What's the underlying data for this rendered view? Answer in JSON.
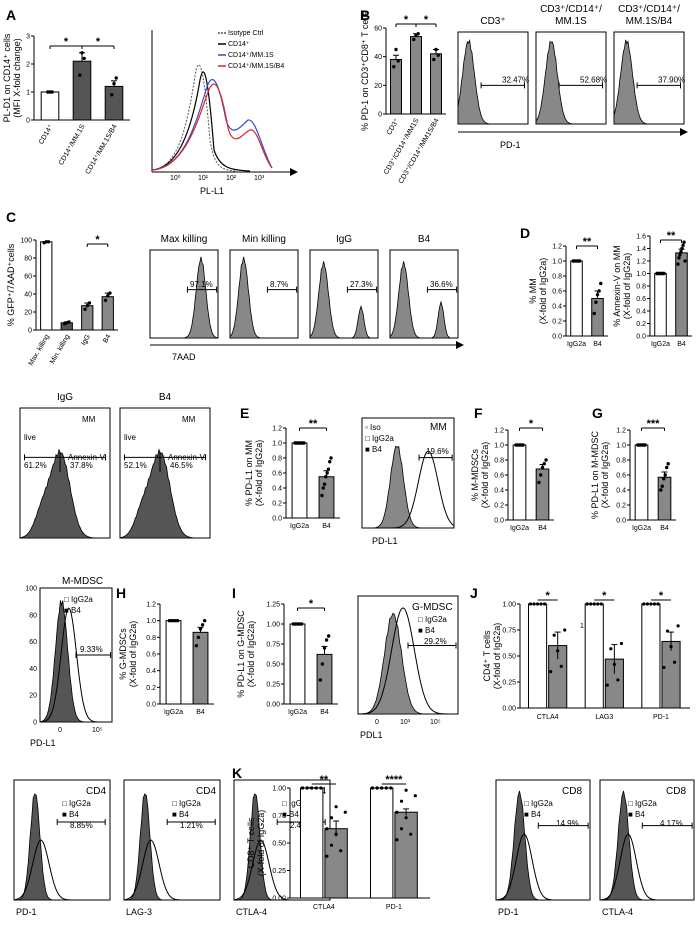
{
  "colors": {
    "dark_fill": "#555555",
    "mid_fill": "#888888",
    "light_fill": "#ffffff",
    "red": "#d9262b",
    "blue": "#2f50c9"
  },
  "panels": {
    "A": {
      "label": "A",
      "chart": {
        "type": "bar",
        "ylabel": "PL-D1 on CD14+ cells (MFI X-fold change)",
        "ylabel_line1": "PL-D1 on CD14⁺ cells",
        "ylabel_line2": "(MFI X-fold change)",
        "categories": [
          "CD14⁺",
          "CD14⁺/MM.1S",
          "CD14⁺/MM.1S/B4"
        ],
        "values": [
          1.0,
          2.1,
          1.2
        ],
        "errors": [
          0.0,
          0.3,
          0.2
        ],
        "points": [
          [
            1,
            1,
            1
          ],
          [
            1.6,
            2.4,
            2.2
          ],
          [
            0.9,
            1.3,
            1.5
          ]
        ],
        "ylim": [
          0,
          3
        ],
        "yticks": [
          0,
          1,
          2,
          3
        ],
        "fills": [
          "#ffffff",
          "#555555",
          "#555555"
        ],
        "sig": [
          "*",
          "*"
        ]
      },
      "histogram": {
        "xlabel": "PL-L1",
        "legend": [
          "Isotype Ctrl",
          "CD14⁺",
          "CD14⁺/MM.1S",
          "CD14⁺/MM.1S/B4"
        ],
        "xticks": [
          "10⁰",
          "10¹",
          "10²",
          "10³"
        ]
      }
    },
    "B": {
      "label": "B",
      "chart": {
        "type": "bar",
        "ylabel": "% PD-1 on CD3+CD8+ T cells",
        "ylabel_line1": "% PD-1 on CD3⁺CD8⁺ T cells",
        "categories": [
          "CD3⁺",
          "CD3⁺/CD14⁺/MM1S",
          "CD3⁺/CD14⁺/MM1S/B4"
        ],
        "values": [
          38,
          54,
          42
        ],
        "errors": [
          3,
          2,
          3
        ],
        "points": [
          [
            33,
            45,
            37
          ],
          [
            52,
            55,
            56
          ],
          [
            38,
            45,
            41
          ]
        ],
        "ylim": [
          0,
          60
        ],
        "yticks": [
          0,
          20,
          40,
          60
        ],
        "fills": [
          "#888888",
          "#888888",
          "#888888"
        ],
        "sig": [
          "*",
          "*"
        ]
      },
      "histograms": [
        {
          "title": "CD3⁺",
          "pct": "32.47%"
        },
        {
          "title": "CD3⁺/CD14⁺/ MM.1S",
          "title_l1": "CD3⁺/CD14⁺/",
          "title_l2": "MM.1S",
          "pct": "52.68%"
        },
        {
          "title": "CD3⁺/CD14⁺/ MM.1S/B4",
          "title_l1": "CD3⁺/CD14⁺/",
          "title_l2": "MM.1S/B4",
          "pct": "37.90%"
        }
      ],
      "xlabel": "PD-1"
    },
    "C": {
      "label": "C",
      "chart": {
        "type": "bar",
        "ylabel": "% GFP+/7AAD+ cells",
        "ylabel_line1": "% GFP⁺/7AAD⁺cells",
        "categories": [
          "Max. killing",
          "Min. killing",
          "IgG",
          "B4"
        ],
        "values": [
          98,
          8,
          27,
          37
        ],
        "errors": [
          0,
          1,
          3,
          4
        ],
        "points": [
          [
            97,
            98,
            98
          ],
          [
            7,
            8,
            9
          ],
          [
            23,
            27,
            30
          ],
          [
            33,
            38,
            41
          ]
        ],
        "ylim": [
          0,
          100
        ],
        "yticks": [
          0,
          20,
          40,
          60,
          80,
          100
        ],
        "fills": [
          "#ffffff",
          "#555555",
          "#888888",
          "#888888"
        ],
        "sig": [
          "*"
        ]
      },
      "histograms": [
        {
          "title": "Max killing",
          "pct": "97.1%"
        },
        {
          "title": "Min killing",
          "pct": "8.7%"
        },
        {
          "title": "IgG",
          "pct": "27.3%"
        },
        {
          "title": "B4",
          "pct": "36.6%"
        }
      ],
      "xlabel": "7AAD"
    },
    "D": {
      "label": "D",
      "charts": [
        {
          "type": "bar",
          "ylabel_line1": "% MM",
          "ylabel_line2": "(X-fold of IgG2a)",
          "categories": [
            "IgG2a",
            "B4"
          ],
          "values": [
            1.0,
            0.5
          ],
          "errors": [
            0,
            0.1
          ],
          "points": [
            [
              1,
              1,
              1,
              1,
              1
            ],
            [
              0.3,
              0.45,
              0.55,
              0.6,
              0.7
            ]
          ],
          "ylim": [
            0,
            1.2
          ],
          "yticks": [
            "0.0",
            "0.2",
            "0.4",
            "0.6",
            "0.8",
            "1.0",
            "1.2"
          ],
          "sig": "**"
        },
        {
          "type": "bar",
          "ylabel_line1": "% Annexin-V on MM",
          "ylabel_line2": "(X-fold of IgG2a)",
          "categories": [
            "IgG2a",
            "B4"
          ],
          "values": [
            1.0,
            1.33
          ],
          "errors": [
            0,
            0.06
          ],
          "points": [
            [
              1,
              1,
              1,
              1,
              1,
              1,
              1,
              1
            ],
            [
              1.15,
              1.25,
              1.3,
              1.35,
              1.4,
              1.45,
              1.5,
              1.2
            ]
          ],
          "ylim": [
            0,
            1.6
          ],
          "yticks": [
            "0.0",
            "0.2",
            "0.4",
            "0.6",
            "0.8",
            "1.0",
            "1.2",
            "1.4",
            "1.6"
          ],
          "sig": "**"
        }
      ]
    },
    "CC": {
      "dotplots": [
        {
          "title": "IgG",
          "tag": "MM",
          "live": "live",
          "live_pct": "61.2%",
          "annex": "Annexin-V",
          "annex_pct": "37.8%"
        },
        {
          "title": "B4",
          "tag": "MM",
          "live": "live",
          "live_pct": "52.1%",
          "annex": "Annexin-V",
          "annex_pct": "46.5%"
        }
      ]
    },
    "E": {
      "label": "E",
      "chart": {
        "type": "bar",
        "ylabel_line1": "% PD-L1 on MM",
        "ylabel_line2": "(X-fold of IgG2a)",
        "categories": [
          "IgG2a",
          "B4"
        ],
        "values": [
          1.0,
          0.55
        ],
        "errors": [
          0,
          0.08
        ],
        "points": [
          [
            1,
            1,
            1,
            1,
            1,
            1,
            1,
            1
          ],
          [
            0.3,
            0.4,
            0.45,
            0.55,
            0.6,
            0.65,
            0.75,
            0.8
          ]
        ],
        "ylim": [
          0,
          1.2
        ],
        "yticks": [
          "0.0",
          "0.2",
          "0.4",
          "0.6",
          "0.8",
          "1.0",
          "1.2"
        ],
        "sig": "**"
      },
      "histogram": {
        "tag": "MM",
        "legend": [
          "Iso",
          "IgG2a",
          "B4"
        ],
        "pct": "19.6%",
        "xlabel": "PD-L1"
      }
    },
    "F": {
      "label": "F",
      "chart": {
        "type": "bar",
        "ylabel_line1": "% M-MDSCs",
        "ylabel_line2": "(X-fold of IgG2a)",
        "categories": [
          "IgG2a",
          "B4"
        ],
        "values": [
          1.0,
          0.68
        ],
        "errors": [
          0,
          0.06
        ],
        "points": [
          [
            1,
            1,
            1,
            1,
            1
          ],
          [
            0.5,
            0.6,
            0.7,
            0.75,
            0.8
          ]
        ],
        "ylim": [
          0,
          1.2
        ],
        "yticks": [
          "0.0",
          "0.2",
          "0.4",
          "0.6",
          "0.8",
          "1.0",
          "1.2"
        ],
        "sig": "*"
      }
    },
    "G": {
      "label": "G",
      "chart": {
        "type": "bar",
        "ylabel_line1": "% PD-L1 on M-MDSC",
        "ylabel_line2": "(X-fold of IgG2a)",
        "categories": [
          "IgG2a",
          "B4"
        ],
        "values": [
          1.0,
          0.57
        ],
        "errors": [
          0,
          0.07
        ],
        "points": [
          [
            1,
            1,
            1,
            1,
            1,
            1
          ],
          [
            0.4,
            0.45,
            0.55,
            0.6,
            0.7,
            0.75
          ]
        ],
        "ylim": [
          0,
          1.2
        ],
        "yticks": [
          "0.0",
          "0.2",
          "0.4",
          "0.6",
          "0.8",
          "1.0",
          "1.2"
        ],
        "sig": "***"
      }
    },
    "MMDSC": {
      "histogram": {
        "tag": "M-MDSC",
        "legend": [
          "IgG2a",
          "B4"
        ],
        "pct": "9.33%",
        "xlabel": "PD-L1",
        "yticks": [
          "0",
          "20",
          "40",
          "60",
          "80",
          "100"
        ],
        "xticks": [
          "0",
          "10⁵"
        ]
      }
    },
    "H": {
      "label": "H",
      "chart": {
        "type": "bar",
        "ylabel_line1": "% G-MDSCs",
        "ylabel_line2": "(X-fold of IgG2a)",
        "categories": [
          "IgG2a",
          "B4"
        ],
        "values": [
          1.0,
          0.86
        ],
        "errors": [
          0,
          0.06
        ],
        "points": [
          [
            1,
            1,
            1,
            1,
            1
          ],
          [
            0.7,
            0.8,
            0.9,
            0.95,
            1.0
          ]
        ],
        "ylim": [
          0,
          1.2
        ],
        "yticks": [
          "0.0",
          "0.2",
          "0.4",
          "0.6",
          "0.8",
          "1.0",
          "1.2"
        ]
      }
    },
    "I": {
      "label": "I",
      "chart": {
        "type": "bar",
        "ylabel_line1": "% PD-L1 on G-MDSC",
        "ylabel_line2": "(X-fold of IgG2a)",
        "categories": [
          "IgG2a",
          "B4"
        ],
        "values": [
          1.0,
          0.62
        ],
        "errors": [
          0,
          0.1
        ],
        "points": [
          [
            1,
            1,
            1,
            1,
            1
          ],
          [
            0.3,
            0.5,
            0.7,
            0.8,
            0.85
          ]
        ],
        "ylim": [
          0,
          1.25
        ],
        "yticks": [
          "0.00",
          "0.25",
          "0.50",
          "0.75",
          "1.00",
          "1.25"
        ],
        "sig": "*"
      },
      "histogram": {
        "tag": "G-MDSC",
        "legend": [
          "IgG2a",
          "B4"
        ],
        "pct": "29.2%",
        "xlabel": "PDL1",
        "xticks": [
          "0",
          "10³",
          "10⁵"
        ]
      }
    },
    "J": {
      "label": "J",
      "chart": {
        "type": "bar",
        "ylabel_line1": "CD4⁺ T cells",
        "ylabel_line2": "(X-fold of IgG2a)",
        "groups": [
          "CTLA4",
          "LAG3",
          "PD-1"
        ],
        "values": [
          [
            1.0,
            0.6
          ],
          [
            1.0,
            0.47
          ],
          [
            1.0,
            0.64
          ]
        ],
        "errors": [
          [
            0,
            0.13
          ],
          [
            0,
            0.14
          ],
          [
            0,
            0.09
          ]
        ],
        "ylim": [
          0,
          1.0
        ],
        "yticks": [
          "0.00",
          "0.25",
          "0.50",
          "0.75",
          "1.00"
        ],
        "sig": [
          "*",
          "*",
          "*"
        ],
        "note": "1"
      },
      "histograms": [
        {
          "tag": "CD4",
          "legend": [
            "IgG2a",
            "B4"
          ],
          "pct": "8.85%",
          "xlabel": "PD-1"
        },
        {
          "tag": "CD4",
          "legend": [
            "IgG2a",
            "B4"
          ],
          "pct": "1.21%",
          "xlabel": "LAG-3"
        },
        {
          "tag": "CD4",
          "legend": [
            "IgG2a",
            "B4"
          ],
          "pct": "2.41%",
          "xlabel": "CTLA-4"
        }
      ]
    },
    "K": {
      "label": "K",
      "chart": {
        "type": "bar",
        "ylabel_line1": "CD8⁺ T cells",
        "ylabel_line2": "(X-fold of IgG2a)",
        "groups": [
          "CTLA4",
          "PD-1"
        ],
        "values": [
          [
            1.0,
            0.63
          ],
          [
            1.0,
            0.78
          ]
        ],
        "errors": [
          [
            0,
            0.07
          ],
          [
            0,
            0.03
          ]
        ],
        "ylim": [
          0,
          1.0
        ],
        "yticks": [
          "0.00",
          "0.25",
          "0.50",
          "0.75",
          "1.00"
        ],
        "sig": [
          "**",
          "****"
        ]
      },
      "histograms": [
        {
          "tag": "CD8",
          "legend": [
            "IgG2a",
            "B4"
          ],
          "pct": "14.9%",
          "xlabel": "PD-1"
        },
        {
          "tag": "CD8",
          "legend": [
            "IgG2a",
            "B4"
          ],
          "pct": "4.17%",
          "xlabel": "CTLA-4"
        }
      ]
    }
  }
}
